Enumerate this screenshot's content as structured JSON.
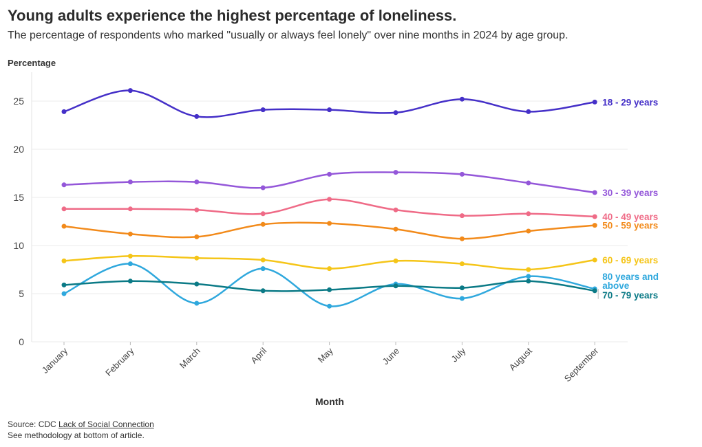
{
  "header": {
    "title": "Young adults experience the highest percentage of loneliness.",
    "subtitle": "The percentage of respondents who marked \"usually or always feel lonely\" over nine months in 2024 by age group."
  },
  "footer": {
    "source_prefix": "Source: CDC ",
    "source_link": "Lack of Social Connection",
    "note": "See methodology at bottom of article."
  },
  "chart_data": {
    "type": "line",
    "ylabel": "Percentage",
    "xlabel": "Month",
    "ylim": [
      0,
      28
    ],
    "yticks": [
      0,
      5,
      10,
      15,
      20,
      25
    ],
    "grid": "horizontal",
    "legend": "end-of-line labels",
    "categories": [
      "January",
      "February",
      "March",
      "April",
      "May",
      "June",
      "July",
      "August",
      "September"
    ],
    "series": [
      {
        "name": "18 - 29 years",
        "label_lines": [
          "18 - 29 years"
        ],
        "color": "#4530c8",
        "values": [
          23.9,
          26.1,
          23.4,
          24.1,
          24.1,
          23.8,
          25.2,
          23.9,
          24.9
        ]
      },
      {
        "name": "30 - 39 years",
        "label_lines": [
          "30 - 39 years"
        ],
        "color": "#9457d9",
        "values": [
          16.3,
          16.6,
          16.6,
          16.0,
          17.4,
          17.6,
          17.4,
          16.5,
          15.5
        ]
      },
      {
        "name": "40 - 49 years",
        "label_lines": [
          "40 - 49 years"
        ],
        "color": "#ef6b87",
        "values": [
          13.8,
          13.8,
          13.7,
          13.3,
          14.8,
          13.7,
          13.1,
          13.3,
          13.0
        ]
      },
      {
        "name": "50 - 59 years",
        "label_lines": [
          "50 - 59 years"
        ],
        "color": "#f28a1a",
        "values": [
          12.0,
          11.2,
          10.9,
          12.2,
          12.3,
          11.7,
          10.7,
          11.5,
          12.1
        ]
      },
      {
        "name": "60 - 69 years",
        "label_lines": [
          "60 - 69 years"
        ],
        "color": "#f5c518",
        "values": [
          8.4,
          8.9,
          8.7,
          8.5,
          7.6,
          8.4,
          8.1,
          7.5,
          8.5
        ]
      },
      {
        "name": "80 years and above",
        "label_lines": [
          "80 years and",
          "above"
        ],
        "color": "#2fa8dd",
        "values": [
          5.0,
          8.1,
          4.0,
          7.6,
          3.7,
          6.0,
          4.5,
          6.8,
          5.5
        ]
      },
      {
        "name": "70 - 79 years",
        "label_lines": [
          "70 - 79 years"
        ],
        "color": "#0b7a86",
        "values": [
          5.9,
          6.3,
          6.0,
          5.3,
          5.4,
          5.8,
          5.6,
          6.3,
          5.3
        ]
      }
    ]
  }
}
